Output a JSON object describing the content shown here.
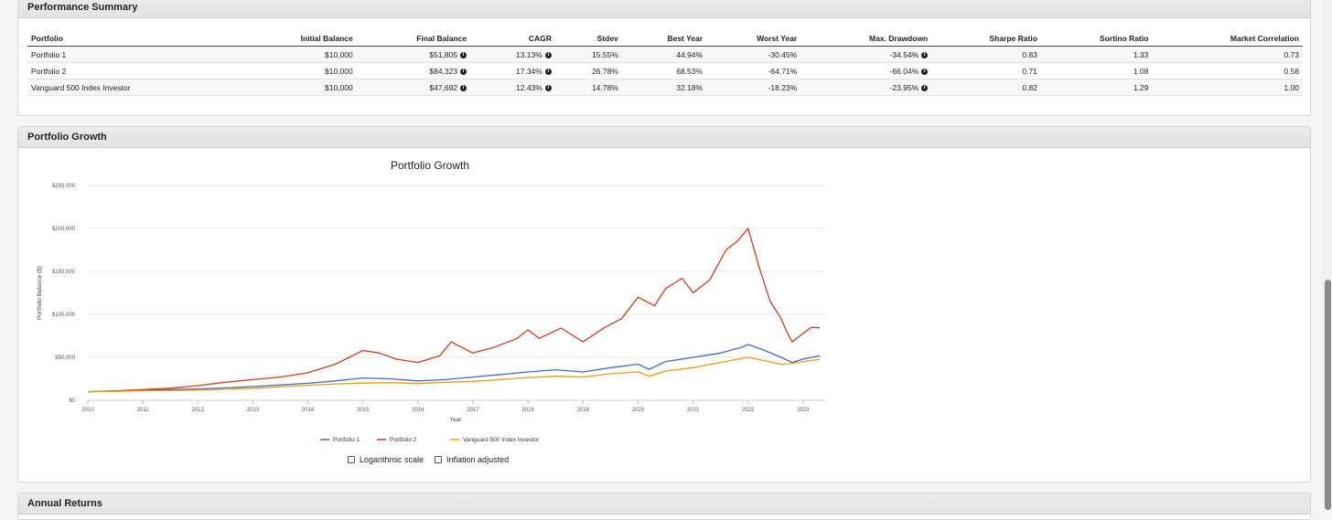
{
  "performance_summary": {
    "title": "Performance Summary",
    "columns": [
      "Portfolio",
      "Initial Balance",
      "Final Balance",
      "CAGR",
      "Stdev",
      "Best Year",
      "Worst Year",
      "Max. Drawdown",
      "Sharpe Ratio",
      "Sortino Ratio",
      "Market Correlation"
    ],
    "rows": [
      [
        "Portfolio 1",
        "$10,000",
        "$51,805",
        "13.13%",
        "15.55%",
        "44.94%",
        "-30.45%",
        "-34.54%",
        "0.83",
        "1.33",
        "0.73"
      ],
      [
        "Portfolio 2",
        "$10,000",
        "$84,323",
        "17.34%",
        "26.78%",
        "68.53%",
        "-64.71%",
        "-66.04%",
        "0.71",
        "1.08",
        "0.58"
      ],
      [
        "Vanguard 500 Index Investor",
        "$10,000",
        "$47,692",
        "12.43%",
        "14.78%",
        "32.18%",
        "-18.23%",
        "-23.95%",
        "0.82",
        "1.29",
        "1.00"
      ]
    ],
    "info_icon_columns": [
      2,
      3,
      7
    ]
  },
  "portfolio_growth": {
    "section_title": "Portfolio Growth",
    "logarithmic_label": "Logarithmic scale",
    "inflation_label": "Inflation adjusted",
    "logarithmic_checked": false,
    "inflation_checked": false
  },
  "annual_returns": {
    "title": "Annual Returns"
  },
  "chart_data": {
    "type": "line",
    "title": "Portfolio Growth",
    "xlabel": "Year",
    "ylabel": "Portfolio Balance ($)",
    "x_ticks": [
      "2010",
      "2011",
      "2012",
      "2013",
      "2014",
      "2015",
      "2016",
      "2017",
      "2018",
      "2019",
      "2020",
      "2021",
      "2022",
      "2023"
    ],
    "y_ticks": [
      "$0",
      "$50,000",
      "$100,000",
      "$150,000",
      "$200,000",
      "$250,000"
    ],
    "xlim": [
      2010,
      2023.4
    ],
    "ylim": [
      0,
      250000
    ],
    "grid": true,
    "legend": "bottom",
    "series": [
      {
        "name": "Portfolio 1",
        "color": "#3a6fc4",
        "points": [
          [
            2010,
            10000
          ],
          [
            2010.5,
            10600
          ],
          [
            2011,
            11800
          ],
          [
            2011.5,
            12400
          ],
          [
            2012,
            13200
          ],
          [
            2012.5,
            14500
          ],
          [
            2013,
            16000
          ],
          [
            2013.5,
            17800
          ],
          [
            2014,
            19800
          ],
          [
            2014.5,
            22500
          ],
          [
            2015,
            26000
          ],
          [
            2015.5,
            25000
          ],
          [
            2016,
            22500
          ],
          [
            2016.5,
            24000
          ],
          [
            2017,
            27000
          ],
          [
            2017.5,
            30000
          ],
          [
            2018,
            33000
          ],
          [
            2018.5,
            35500
          ],
          [
            2019,
            33000
          ],
          [
            2019.5,
            38000
          ],
          [
            2020,
            42000
          ],
          [
            2020.2,
            36000
          ],
          [
            2020.5,
            45000
          ],
          [
            2021,
            50000
          ],
          [
            2021.5,
            55000
          ],
          [
            2021.9,
            62000
          ],
          [
            2022,
            65000
          ],
          [
            2022.3,
            58000
          ],
          [
            2022.6,
            50000
          ],
          [
            2022.8,
            44000
          ],
          [
            2023,
            48000
          ],
          [
            2023.3,
            51805
          ]
        ]
      },
      {
        "name": "Portfolio 2",
        "color": "#d4391b",
        "points": [
          [
            2010,
            10000
          ],
          [
            2010.5,
            11000
          ],
          [
            2011,
            12500
          ],
          [
            2011.5,
            14000
          ],
          [
            2012,
            17000
          ],
          [
            2012.5,
            21000
          ],
          [
            2013,
            24000
          ],
          [
            2013.5,
            27000
          ],
          [
            2014,
            32000
          ],
          [
            2014.5,
            42000
          ],
          [
            2015,
            58000
          ],
          [
            2015.3,
            55000
          ],
          [
            2015.6,
            48000
          ],
          [
            2016,
            44000
          ],
          [
            2016.4,
            52000
          ],
          [
            2016.6,
            68000
          ],
          [
            2017,
            55000
          ],
          [
            2017.4,
            62000
          ],
          [
            2017.8,
            72000
          ],
          [
            2018,
            82000
          ],
          [
            2018.2,
            72000
          ],
          [
            2018.6,
            84000
          ],
          [
            2019,
            68000
          ],
          [
            2019.4,
            85000
          ],
          [
            2019.7,
            95000
          ],
          [
            2020,
            120000
          ],
          [
            2020.3,
            110000
          ],
          [
            2020.5,
            130000
          ],
          [
            2020.8,
            142000
          ],
          [
            2021,
            125000
          ],
          [
            2021.3,
            140000
          ],
          [
            2021.6,
            175000
          ],
          [
            2021.8,
            185000
          ],
          [
            2022,
            200000
          ],
          [
            2022.2,
            155000
          ],
          [
            2022.4,
            115000
          ],
          [
            2022.6,
            95000
          ],
          [
            2022.7,
            80000
          ],
          [
            2022.8,
            68000
          ],
          [
            2023,
            78000
          ],
          [
            2023.15,
            85000
          ],
          [
            2023.3,
            84323
          ]
        ]
      },
      {
        "name": "Vanguard 500 Index Investor",
        "color": "#f29a0f",
        "points": [
          [
            2010,
            10000
          ],
          [
            2010.5,
            10400
          ],
          [
            2011,
            11200
          ],
          [
            2011.5,
            11400
          ],
          [
            2012,
            11800
          ],
          [
            2012.5,
            12800
          ],
          [
            2013,
            14000
          ],
          [
            2013.5,
            15500
          ],
          [
            2014,
            17500
          ],
          [
            2014.5,
            19000
          ],
          [
            2015,
            20000
          ],
          [
            2015.5,
            20500
          ],
          [
            2016,
            19500
          ],
          [
            2016.5,
            21000
          ],
          [
            2017,
            22000
          ],
          [
            2017.5,
            24000
          ],
          [
            2018,
            26500
          ],
          [
            2018.5,
            28000
          ],
          [
            2019,
            27000
          ],
          [
            2019.5,
            31000
          ],
          [
            2020,
            33000
          ],
          [
            2020.2,
            28000
          ],
          [
            2020.5,
            34000
          ],
          [
            2021,
            38000
          ],
          [
            2021.5,
            44000
          ],
          [
            2022,
            50000
          ],
          [
            2022.3,
            46000
          ],
          [
            2022.6,
            42000
          ],
          [
            2022.8,
            43000
          ],
          [
            2023,
            45000
          ],
          [
            2023.3,
            47692
          ]
        ]
      }
    ]
  }
}
